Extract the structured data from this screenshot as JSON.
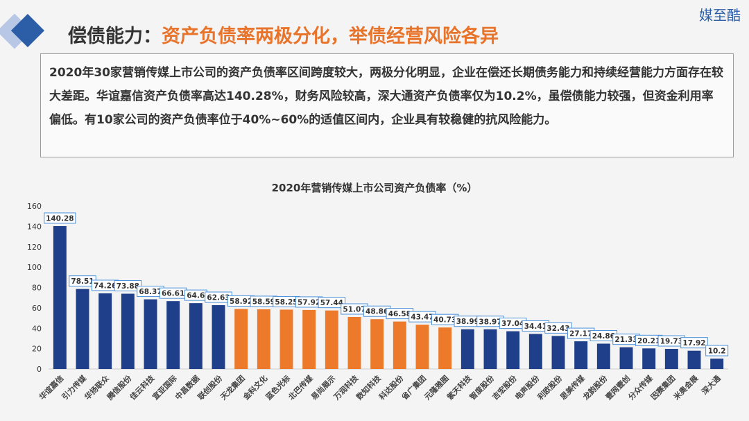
{
  "header": {
    "title_prefix": "偿债能力：",
    "title_highlight": "资产负债率两极分化，举债经营风险各异",
    "brand": "媒至酷"
  },
  "description": "2020年30家营销传媒上市公司的资产负债率区间跨度较大，两极分化明显，企业在偿还长期债务能力和持续经营能力方面存在较大差距。华谊嘉信资产负债率高达140.28%，财务风险较高，深大通资产负债率仅为10.2%，虽偿债能力较强，但资金利用率偏低。有10家公司的资产负债率位于40%~60%的适值区间内，企业具有较稳健的抗风险能力。",
  "colors": {
    "blue": "#1f3f8a",
    "orange": "#ec7a2a",
    "accent": "#e8732a"
  },
  "chart_data": {
    "type": "bar",
    "title": "2020年营销传媒上市公司资产负债率（%）",
    "xlabel": "",
    "ylabel": "",
    "ylim": [
      0,
      160
    ],
    "yticks": [
      0,
      20,
      40,
      60,
      80,
      100,
      120,
      140,
      160
    ],
    "grid": false,
    "categories": [
      "华谊嘉信",
      "引力传媒",
      "华扬联众",
      "腾信股份",
      "佳云科技",
      "宣亚国际",
      "中昌数据",
      "联创股份",
      "天龙集团",
      "金科文化",
      "蓝色光标",
      "北巴传媒",
      "易尚展示",
      "万润科技",
      "数知科技",
      "科达股份",
      "省广集团",
      "元隆雅图",
      "紫天科技",
      "智度股份",
      "吉宏股份",
      "电声股份",
      "利欧股份",
      "思美传媒",
      "龙韵股份",
      "壹网壹创",
      "分众传媒",
      "因赛集团",
      "米奥会展",
      "深大通"
    ],
    "values": [
      140.28,
      78.51,
      74.26,
      73.88,
      68.37,
      66.61,
      64.6,
      62.63,
      58.92,
      58.59,
      58.25,
      57.92,
      57.44,
      51.07,
      48.86,
      46.58,
      43.47,
      40.73,
      38.99,
      38.97,
      37.04,
      34.41,
      32.43,
      27.17,
      24.86,
      21.33,
      20.21,
      19.73,
      17.92,
      10.2
    ],
    "highlight_range": "40%~60%"
  }
}
